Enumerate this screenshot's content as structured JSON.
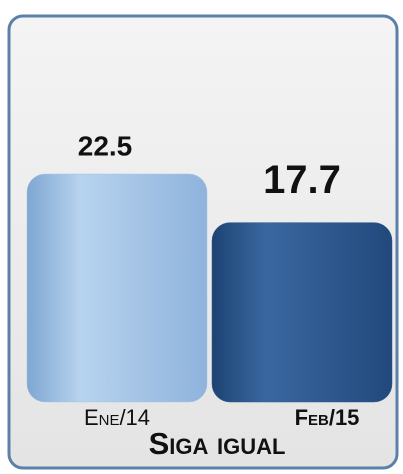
{
  "chart_data": {
    "type": "bar",
    "title": "Siga igual",
    "categories": [
      "Ene/14",
      "Feb/15"
    ],
    "values": [
      22.5,
      17.7
    ],
    "colors": [
      "#a3c4e6",
      "#2f5b90"
    ]
  }
}
